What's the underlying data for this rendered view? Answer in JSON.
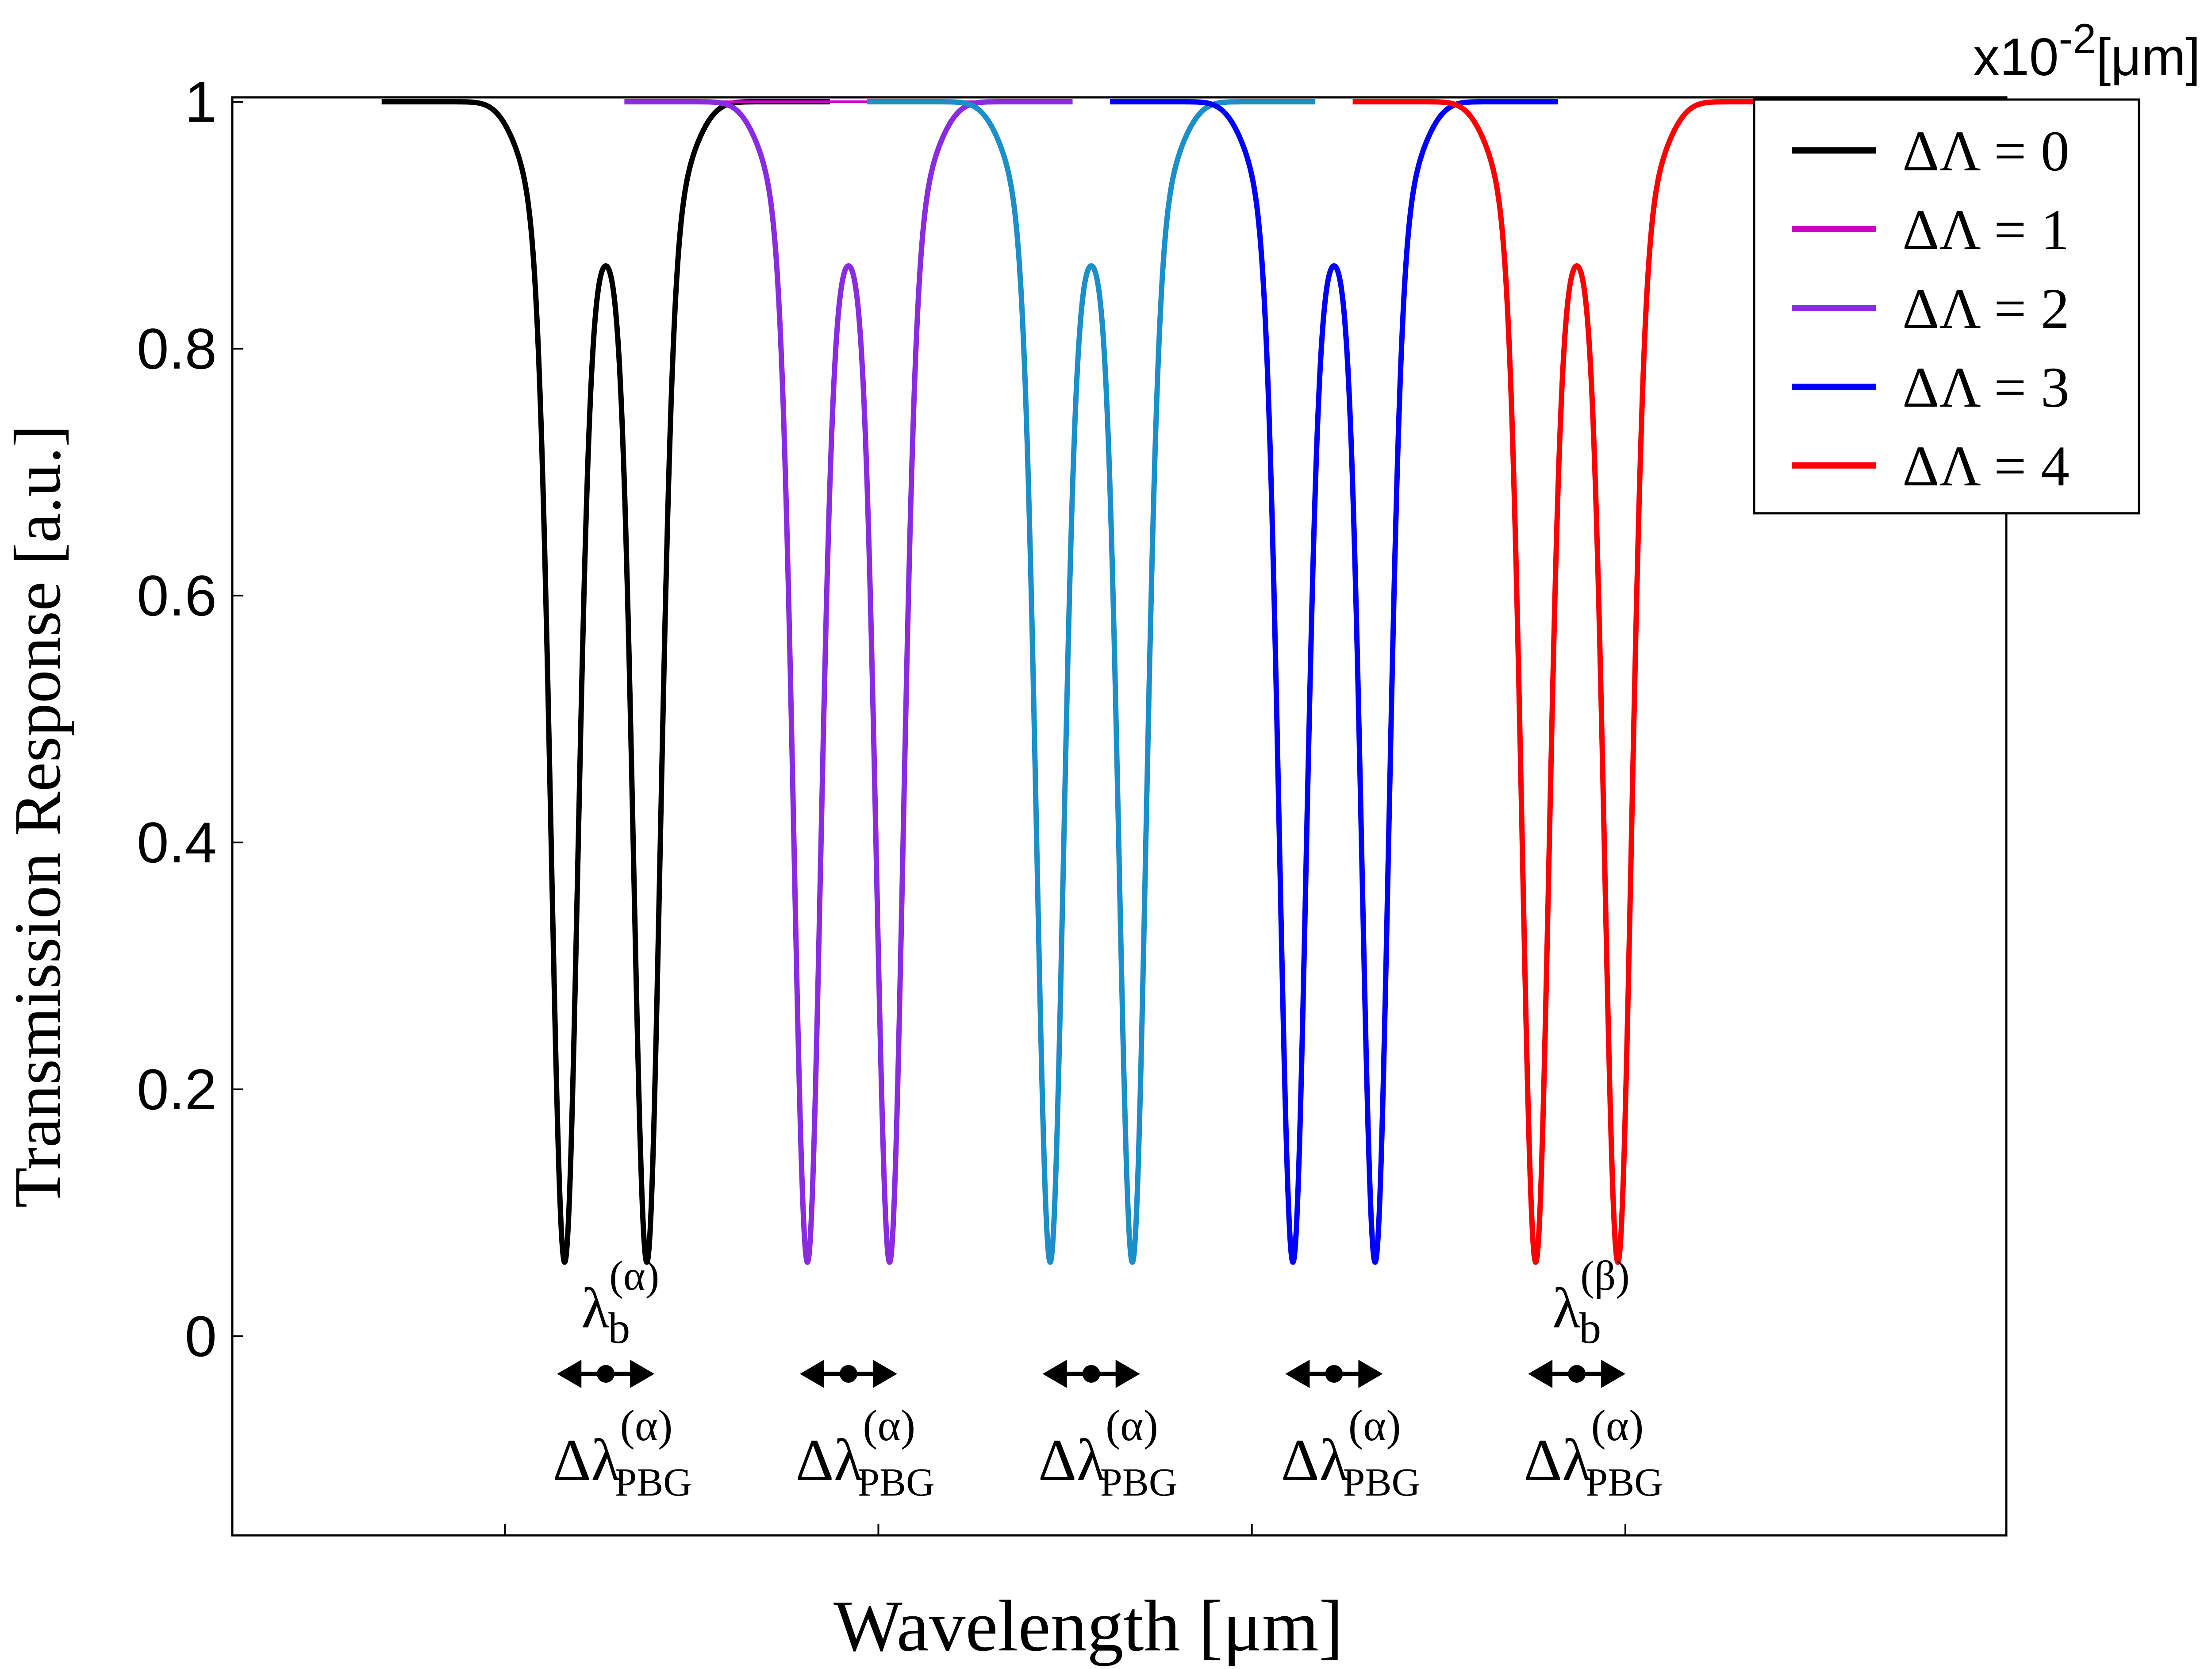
{
  "chart_data": {
    "type": "line",
    "ylabel": "Transmission Response [a.u.]",
    "xlabel": "Wavelength [μm]",
    "x_scale_label": "x10",
    "x_scale_exponent": "-2",
    "x_scale_unit": "[μm]",
    "xlim": [
      0,
      4.75
    ],
    "ylim": [
      -0.16,
      1.04
    ],
    "yticks": [
      {
        "value": 0,
        "label": "0"
      },
      {
        "value": 0.2,
        "label": "0.2"
      },
      {
        "value": 0.4,
        "label": "0.4"
      },
      {
        "value": 0.6,
        "label": "0.6"
      },
      {
        "value": 0.8,
        "label": "0.8"
      },
      {
        "value": 1,
        "label": "1"
      }
    ],
    "xticks": [
      0.73,
      1.73,
      2.73,
      3.73
    ],
    "legend_position": "top-right",
    "series": [
      {
        "name": "ΔΛ = 0",
        "color": "#000000",
        "center": 1.0,
        "half_gap": 0.11,
        "min": 0.06,
        "mid_peak": 0.88
      },
      {
        "name": "ΔΛ = 1",
        "color": "#cc00cc",
        "center": 1.65,
        "half_gap": 0.11,
        "min": 0.06,
        "mid_peak": 0.88,
        "visible_dips": false
      },
      {
        "name": "ΔΛ = 2",
        "color": "#8a2be2",
        "center": 1.65,
        "half_gap": 0.11,
        "min": 0.06,
        "mid_peak": 0.88
      },
      {
        "name": "ΔΛ = 3",
        "color": "#1a8fc9",
        "center": 2.3,
        "half_gap": 0.11,
        "min": 0.06,
        "mid_peak": 0.88,
        "legend_color": "#0000ff"
      },
      {
        "name": "ΔΛ = 3",
        "color": "#0000ff",
        "center": 2.95,
        "half_gap": 0.11,
        "min": 0.06,
        "mid_peak": 0.88,
        "legend_hidden": true
      },
      {
        "name": "ΔΛ = 4",
        "color": "#ff0000",
        "center": 3.6,
        "half_gap": 0.11,
        "min": 0.06,
        "mid_peak": 0.88
      }
    ],
    "legend": [
      {
        "label": "ΔΛ = 0",
        "color": "#000000"
      },
      {
        "label": "ΔΛ = 1",
        "color": "#cc00cc"
      },
      {
        "label": "ΔΛ = 2",
        "color": "#8a2be2"
      },
      {
        "label": "ΔΛ = 3",
        "color": "#0000ff"
      },
      {
        "label": "ΔΛ = 4",
        "color": "#ff0000"
      }
    ],
    "annotations": {
      "lambda_b_left": {
        "base": "λ",
        "sub": "b",
        "sup": "(α)"
      },
      "lambda_b_right": {
        "base": "λ",
        "sub": "b",
        "sup": "(β)"
      },
      "pbg_label": {
        "base": "Δλ",
        "sub": "PBG",
        "sup": "(α)"
      }
    }
  }
}
